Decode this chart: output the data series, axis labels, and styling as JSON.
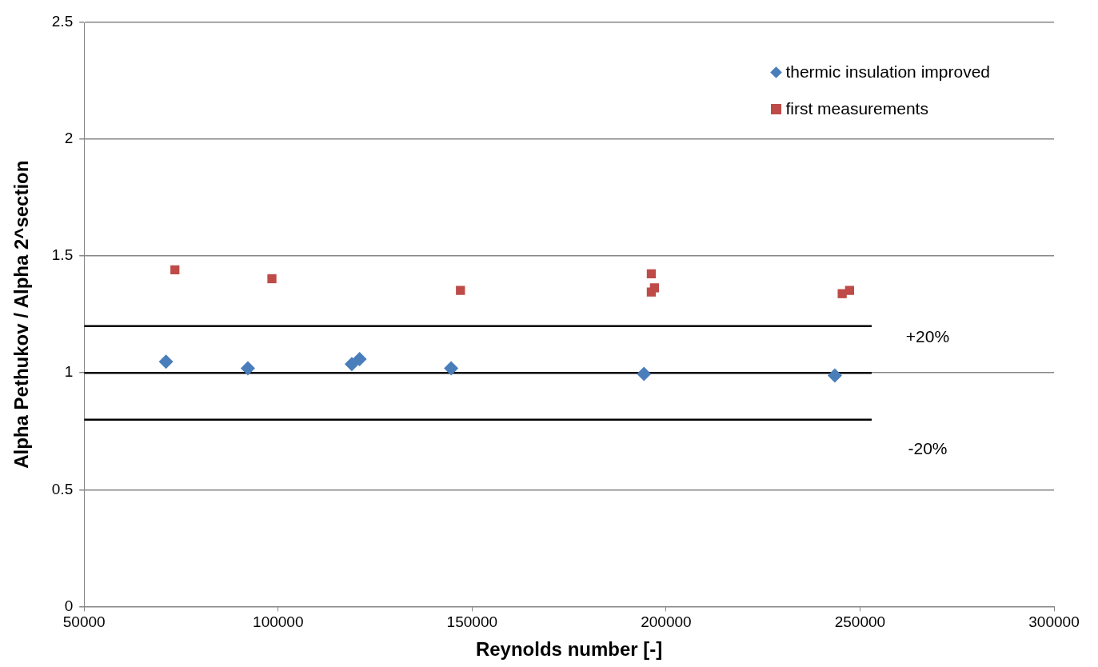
{
  "chart_data": {
    "type": "scatter",
    "xlabel": "Reynolds number [-]",
    "ylabel": "Alpha Pethukov / Alpha 2^section",
    "xlim": [
      50000,
      300000
    ],
    "xticks": [
      50000,
      100000,
      150000,
      200000,
      250000,
      300000
    ],
    "ylim": [
      0,
      2.5
    ],
    "yticks": [
      0,
      0.5,
      1,
      1.5,
      2,
      2.5
    ],
    "grid": "y",
    "legend": "top right",
    "series": [
      {
        "name": "thermic insulation improved",
        "color": "#4a7ebb",
        "marker": "diamond",
        "x": [
          71100,
          92200,
          119000,
          121000,
          144600,
          194300,
          243500
        ],
        "values": [
          1.048,
          1.02,
          1.038,
          1.059,
          1.02,
          0.996,
          0.989
        ]
      },
      {
        "name": "first measurements",
        "color": "#be4b48",
        "marker": "square",
        "x": [
          73400,
          98400,
          147000,
          196200,
          197000,
          196200,
          245400,
          247300
        ],
        "values": [
          1.441,
          1.403,
          1.353,
          1.424,
          1.364,
          1.346,
          1.339,
          1.353
        ]
      },
      {
        "type": "line",
        "name": "+20%",
        "color": "#000000",
        "marker": "none",
        "x": [
          50000,
          253000
        ],
        "values": [
          1.2,
          1.2
        ]
      },
      {
        "type": "line",
        "color": "#000000",
        "marker": "none",
        "x": [
          50000,
          253000
        ],
        "values": [
          1,
          1
        ]
      },
      {
        "type": "line",
        "name": "-20%",
        "color": "#000000",
        "marker": "none",
        "x": [
          50000,
          253000
        ],
        "values": [
          0.8,
          0.8
        ]
      }
    ]
  }
}
